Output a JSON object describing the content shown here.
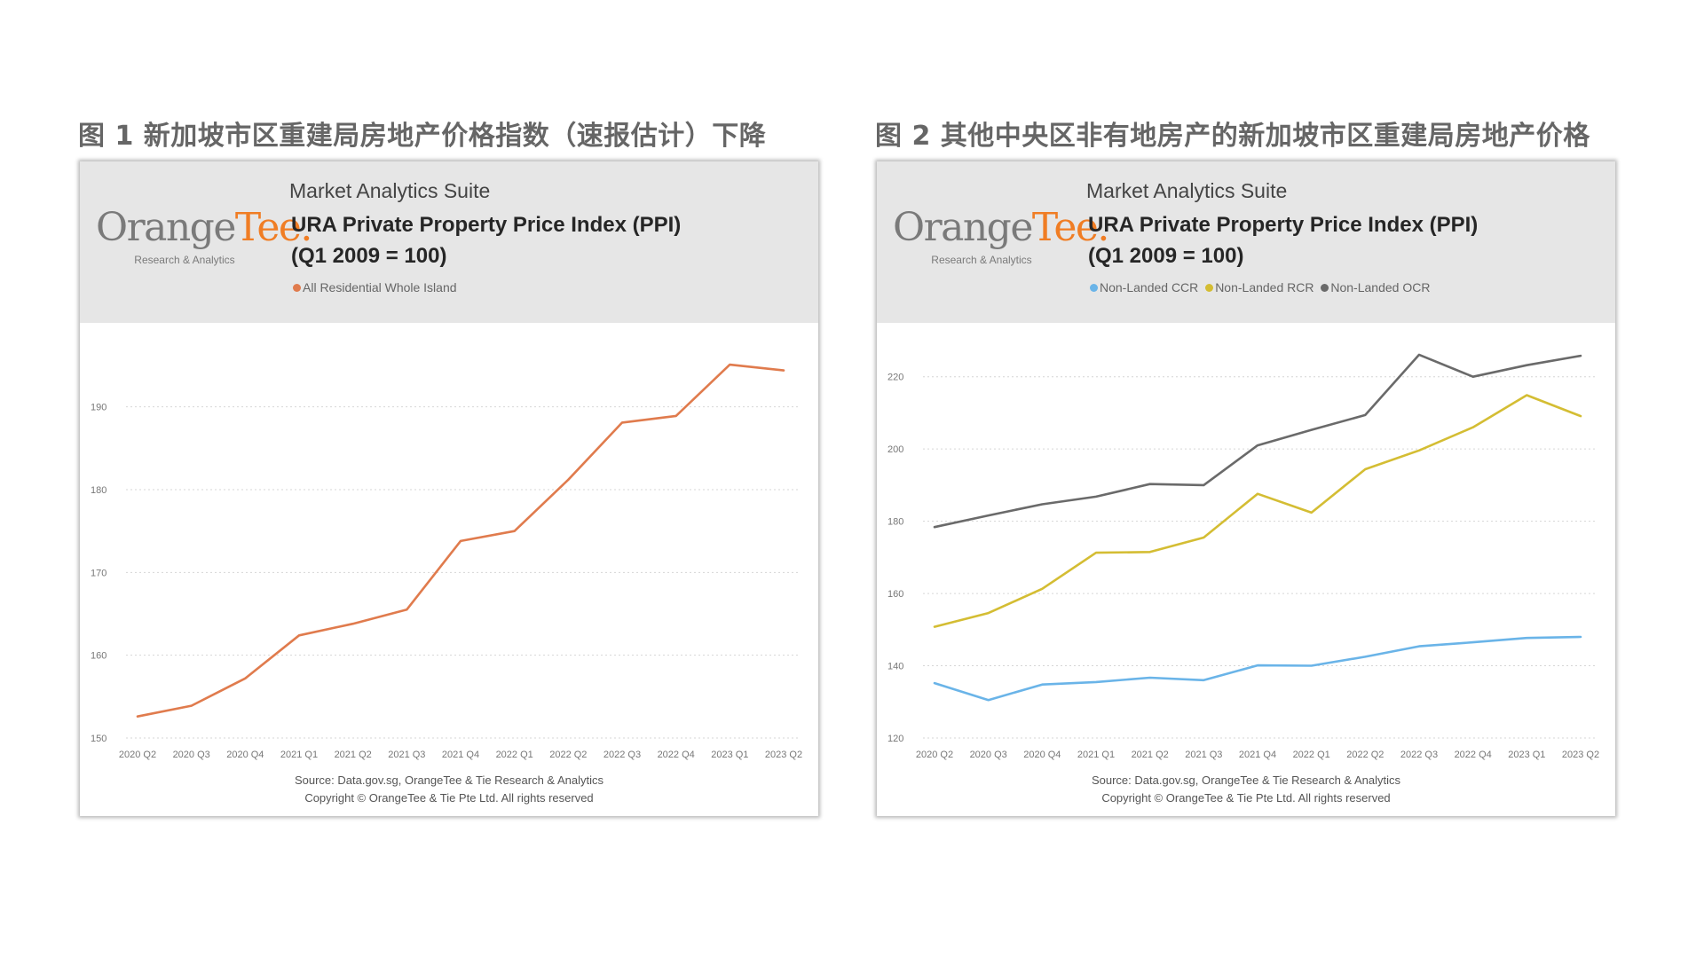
{
  "figure_captions": [
    "图 1 新加坡市区重建局房地产价格指数（速报估计）下降",
    "图 2 其他中央区非有地房产的新加坡市区重建局房地产价格"
  ],
  "brand": {
    "word_part1": "Orange",
    "word_part2": "Tee",
    "suffix": ".",
    "subtitle": "Research & Analytics",
    "accent_color": "#f07d24"
  },
  "chart_data": [
    {
      "type": "line",
      "suite": "Market Analytics Suite",
      "title": "URA Private Property Price Index (PPI)",
      "subtitle": "(Q1 2009 = 100)",
      "categories": [
        "2020 Q2",
        "2020 Q3",
        "2020 Q4",
        "2021 Q1",
        "2021 Q2",
        "2021 Q3",
        "2021 Q4",
        "2022 Q1",
        "2022 Q2",
        "2022 Q3",
        "2022 Q4",
        "2023 Q1",
        "2023 Q2"
      ],
      "series": [
        {
          "name": "All Residential Whole Island",
          "color": "#e07b4d",
          "values": [
            152.6,
            153.9,
            157.2,
            162.4,
            163.8,
            165.5,
            173.8,
            175.0,
            181.2,
            188.1,
            188.9,
            195.1,
            194.4
          ]
        }
      ],
      "ylim": [
        150,
        198
      ],
      "yticks": [
        150,
        160,
        170,
        180,
        190
      ],
      "grid": true,
      "legend_position": "top",
      "source": "Source: Data.gov.sg, OrangeTee & Tie Research & Analytics",
      "copyright": "Copyright © OrangeTee & Tie Pte Ltd. All rights reserved"
    },
    {
      "type": "line",
      "suite": "Market Analytics Suite",
      "title": "URA Private Property Price Index (PPI)",
      "subtitle": "(Q1 2009 = 100)",
      "categories": [
        "2020 Q2",
        "2020 Q3",
        "2020 Q4",
        "2021 Q1",
        "2021 Q2",
        "2021 Q3",
        "2021 Q4",
        "2022 Q1",
        "2022 Q2",
        "2022 Q3",
        "2022 Q4",
        "2023 Q1",
        "2023 Q2"
      ],
      "series": [
        {
          "name": "Non-Landed CCR",
          "color": "#6ab4e8",
          "values": [
            135.2,
            130.5,
            134.8,
            135.5,
            136.7,
            136.0,
            140.1,
            140.0,
            142.5,
            145.4,
            146.5,
            147.7,
            148.0
          ]
        },
        {
          "name": "Non-Landed RCR",
          "color": "#d4bd33",
          "values": [
            150.8,
            154.6,
            161.3,
            171.3,
            171.5,
            175.5,
            187.6,
            182.4,
            194.4,
            199.6,
            206.0,
            214.9,
            209.1
          ]
        },
        {
          "name": "Non-Landed OCR",
          "color": "#6a6a6a",
          "values": [
            178.4,
            181.6,
            184.7,
            186.8,
            190.3,
            190.0,
            201.0,
            205.3,
            209.4,
            226.1,
            220.0,
            223.2,
            225.8
          ]
        }
      ],
      "ylim": [
        120,
        230
      ],
      "yticks": [
        120,
        140,
        160,
        180,
        200,
        220
      ],
      "grid": true,
      "legend_position": "top",
      "source": "Source: Data.gov.sg, OrangeTee & Tie Research & Analytics",
      "copyright": "Copyright © OrangeTee & Tie Pte Ltd. All rights reserved"
    }
  ]
}
